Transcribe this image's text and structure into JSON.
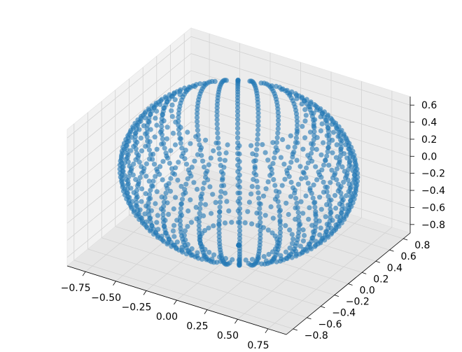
{
  "chart_data": {
    "type": "scatter",
    "projection": "3d",
    "description_shape": "points arranged on a sphere along meridian curves, denser near the x=0 plane",
    "marker_color": "#1f77b4",
    "marker_alpha": 0.6,
    "grid": true,
    "pane_color": "#f2f2f2",
    "xlim": [
      -0.9,
      0.9
    ],
    "ylim": [
      -0.9,
      0.9
    ],
    "zlim": [
      -0.9,
      0.7
    ],
    "x_ticks": [
      "−0.75",
      "−0.50",
      "−0.25",
      "0.00",
      "0.25",
      "0.50",
      "0.75"
    ],
    "y_ticks": [
      "−0.8",
      "−0.6",
      "−0.4",
      "−0.2",
      "0.0",
      "0.2",
      "0.4",
      "0.6",
      "0.8"
    ],
    "z_ticks": [
      "−0.8",
      "−0.6",
      "−0.4",
      "−0.2",
      "0.0",
      "0.2",
      "0.4",
      "0.6"
    ],
    "x_tick_values": [
      -0.75,
      -0.5,
      -0.25,
      0,
      0.25,
      0.5,
      0.75
    ],
    "y_tick_values": [
      -0.8,
      -0.6,
      -0.4,
      -0.2,
      0,
      0.2,
      0.4,
      0.6,
      0.8
    ],
    "z_tick_values": [
      -0.8,
      -0.6,
      -0.4,
      -0.2,
      0,
      0.2,
      0.4,
      0.6
    ],
    "series": [
      {
        "generator": "sphere_meridians",
        "radius": 0.85,
        "z_range": [
          -0.85,
          0.7
        ],
        "meridian_count": 36,
        "points_per_meridian": 34
      }
    ]
  }
}
